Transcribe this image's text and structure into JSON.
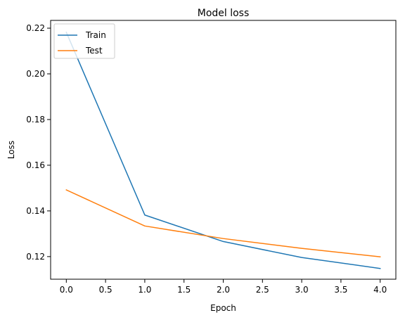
{
  "chart_data": {
    "type": "line",
    "title": "Model loss",
    "xlabel": "Epoch",
    "ylabel": "Loss",
    "x": [
      0,
      1,
      2,
      3,
      4
    ],
    "xlim": [
      -0.2,
      4.2
    ],
    "ylim": [
      0.1101,
      0.2234
    ],
    "x_ticks": [
      "0.0",
      "0.5",
      "1.0",
      "1.5",
      "2.0",
      "2.5",
      "3.0",
      "3.5",
      "4.0"
    ],
    "y_ticks": [
      "0.12",
      "0.14",
      "0.16",
      "0.18",
      "0.20",
      "0.22"
    ],
    "grid": false,
    "legend_location": "upper left",
    "series": [
      {
        "name": "Train",
        "color": "#1f77b4",
        "values": [
          0.2182,
          0.1382,
          0.1266,
          0.1196,
          0.1148
        ]
      },
      {
        "name": "Test",
        "color": "#ff7f0e",
        "values": [
          0.1492,
          0.1334,
          0.1279,
          0.1236,
          0.1199
        ]
      }
    ]
  }
}
